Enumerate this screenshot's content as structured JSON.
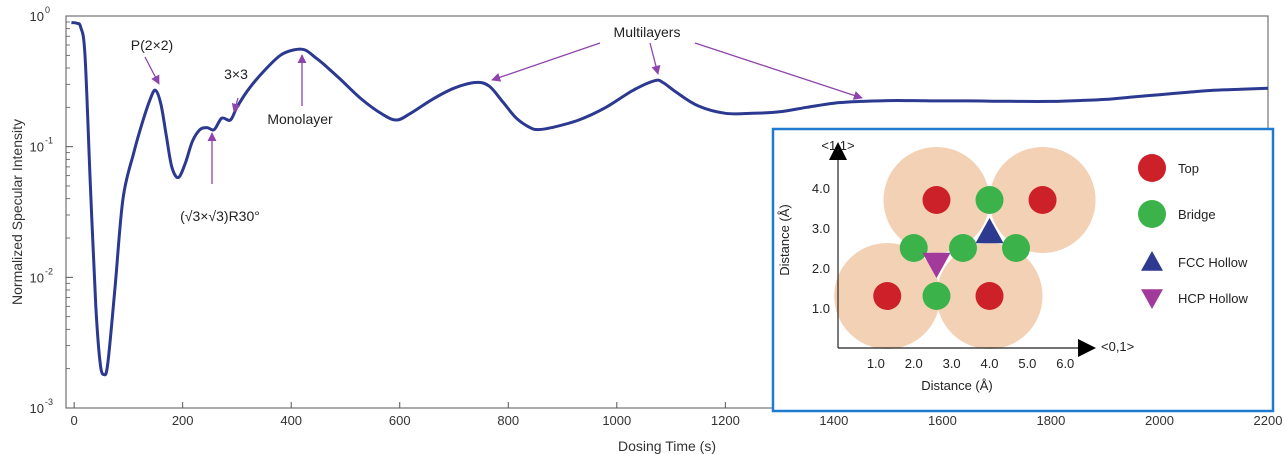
{
  "chart_data": {
    "type": "line",
    "xlabel": "Dosing Time (s)",
    "ylabel": "Normalized Specular Intensity",
    "xlim": [
      -15,
      2200
    ],
    "ylim": [
      0.001,
      1
    ],
    "yscale": "log",
    "grid": false,
    "x_ticks": [
      "0",
      "200",
      "400",
      "600",
      "800",
      "1000",
      "1200",
      "1400",
      "1600",
      "1800",
      "2000",
      "2200"
    ],
    "x_tick_values": [
      0,
      200,
      400,
      600,
      800,
      1000,
      1200,
      1400,
      1600,
      1800,
      2000,
      2200
    ],
    "y_ticks": [
      {
        "base": "10",
        "exp": "-3",
        "value": 0.001
      },
      {
        "base": "10",
        "exp": "-2",
        "value": 0.01
      },
      {
        "base": "10",
        "exp": "-1",
        "value": 0.1
      },
      {
        "base": "10",
        "exp": "0",
        "value": 1
      }
    ],
    "series": [
      {
        "color": "#2b3990",
        "x": [
          -5,
          5,
          12,
          20,
          30,
          40,
          48,
          55,
          62,
          75,
          90,
          110,
          125,
          140,
          150,
          160,
          170,
          180,
          192,
          205,
          218,
          232,
          245,
          258,
          272,
          288,
          300,
          320,
          350,
          380,
          405,
          425,
          445,
          462,
          490,
          530,
          570,
          595,
          620,
          660,
          700,
          740,
          765,
          790,
          815,
          840,
          855,
          880,
          930,
          980,
          1030,
          1070,
          1085,
          1110,
          1150,
          1200,
          1250,
          1300,
          1350,
          1400,
          1450,
          1500,
          1550,
          1600,
          1650,
          1700,
          1750,
          1800,
          1850,
          1900,
          1950,
          2000,
          2050,
          2100,
          2150,
          2200
        ],
        "y": [
          0.89,
          0.88,
          0.82,
          0.5,
          0.05,
          0.006,
          0.0022,
          0.0018,
          0.0022,
          0.008,
          0.04,
          0.09,
          0.15,
          0.23,
          0.27,
          0.21,
          0.12,
          0.07,
          0.058,
          0.075,
          0.11,
          0.135,
          0.14,
          0.135,
          0.165,
          0.16,
          0.2,
          0.27,
          0.38,
          0.5,
          0.55,
          0.55,
          0.48,
          0.42,
          0.33,
          0.23,
          0.175,
          0.16,
          0.18,
          0.23,
          0.28,
          0.31,
          0.29,
          0.22,
          0.165,
          0.14,
          0.135,
          0.14,
          0.16,
          0.2,
          0.27,
          0.32,
          0.31,
          0.26,
          0.205,
          0.18,
          0.18,
          0.185,
          0.2,
          0.215,
          0.222,
          0.225,
          0.225,
          0.224,
          0.224,
          0.223,
          0.222,
          0.222,
          0.225,
          0.23,
          0.24,
          0.25,
          0.26,
          0.27,
          0.275,
          0.28
        ]
      }
    ],
    "annotations": [
      {
        "text": "P(2×2)",
        "x": 150,
        "y": 0.27,
        "arrow": "down"
      },
      {
        "text": "3×3",
        "x": 288,
        "y": 0.16,
        "arrow": "down"
      },
      {
        "text": "Monolayer",
        "x": 405,
        "y": 0.55,
        "arrow": "up"
      },
      {
        "text": "(√3×√3)R30°",
        "x": 238,
        "y": 0.135,
        "arrow": "up"
      },
      {
        "text": "Multilayers",
        "targets": [
          {
            "x": 760,
            "y": 0.31
          },
          {
            "x": 1068,
            "y": 0.32
          },
          {
            "x": 1450,
            "y": 0.22
          }
        ]
      }
    ],
    "inset": {
      "xlabel": "Distance (Å)",
      "ylabel": "Distance (Å)",
      "x_axis_label": "<0,1>",
      "y_axis_label": "<1,1>",
      "x_ticks": [
        "1.0",
        "2.0",
        "3.0",
        "4.0",
        "5.0",
        "6.0"
      ],
      "x_tick_values": [
        1,
        2,
        3,
        4,
        5,
        6
      ],
      "y_ticks": [
        "1.0",
        "2.0",
        "3.0",
        "4.0"
      ],
      "y_tick_values": [
        1,
        2,
        3,
        4
      ],
      "xlim": [
        0,
        6.6
      ],
      "ylim": [
        0,
        5
      ],
      "atom_radius": 1.4,
      "atom_color": "#f3d1b5",
      "atoms": [
        {
          "x": 1.3,
          "y": 1.3
        },
        {
          "x": 4.0,
          "y": 1.3
        },
        {
          "x": 2.6,
          "y": 3.7
        },
        {
          "x": 5.4,
          "y": 3.7
        }
      ],
      "sites": [
        {
          "kind": "top",
          "x": 1.3,
          "y": 1.3
        },
        {
          "kind": "top",
          "x": 4.0,
          "y": 1.3
        },
        {
          "kind": "top",
          "x": 2.6,
          "y": 3.7
        },
        {
          "kind": "top",
          "x": 5.4,
          "y": 3.7
        },
        {
          "kind": "bridge",
          "x": 4.0,
          "y": 3.7
        },
        {
          "kind": "bridge",
          "x": 2.0,
          "y": 2.5
        },
        {
          "kind": "bridge",
          "x": 3.3,
          "y": 2.5
        },
        {
          "kind": "bridge",
          "x": 4.7,
          "y": 2.5
        },
        {
          "kind": "bridge",
          "x": 2.6,
          "y": 1.3
        },
        {
          "kind": "fcc",
          "x": 4.0,
          "y": 2.9
        },
        {
          "kind": "hcp",
          "x": 2.6,
          "y": 2.1
        }
      ],
      "legend": [
        {
          "kind": "top",
          "label": "Top",
          "color": "#cc2129"
        },
        {
          "kind": "bridge",
          "label": "Bridge",
          "color": "#3cb34a"
        },
        {
          "kind": "fcc",
          "label": "FCC Hollow",
          "color": "#2e3a8f"
        },
        {
          "kind": "hcp",
          "label": "HCP Hollow",
          "color": "#a23a9c"
        }
      ]
    }
  },
  "colors": {
    "series": "#2b3990",
    "annotation_arrow": "#8e44ad",
    "inset_border": "#1f7bd0",
    "top": "#cc2129",
    "bridge": "#3cb34a",
    "fcc": "#2e3a8f",
    "hcp": "#a23a9c",
    "atom": "#f3d1b5"
  }
}
